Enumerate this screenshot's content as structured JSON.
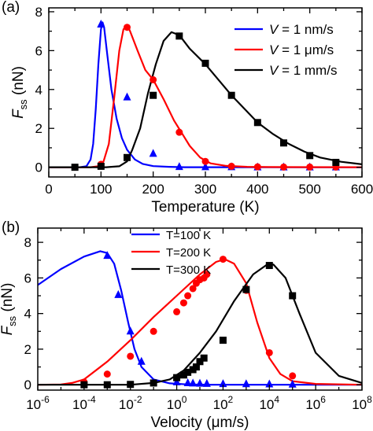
{
  "chart_data": [
    {
      "panel": "(a)",
      "type": "line",
      "xlabel": "Temperature (K)",
      "ylabel_main": "F",
      "ylabel_sub": "ss",
      "ylabel_unit": "(nN)",
      "xlim": [
        0,
        600
      ],
      "ylim": [
        -0.5,
        8.2
      ],
      "xticks": [
        0,
        100,
        200,
        300,
        400,
        500,
        600
      ],
      "xtick_labels": [
        "0",
        "100",
        "200",
        "300",
        "400",
        "500",
        "600"
      ],
      "yticks": [
        0,
        2,
        4,
        6,
        8
      ],
      "ytick_labels": [
        "0",
        "2",
        "4",
        "6",
        "8"
      ],
      "grid": false,
      "legend_position": "top-right",
      "series": [
        {
          "name_pre": "V",
          "name_post": " = 1 nm/s",
          "color": "#0000ff",
          "marker": "triangle",
          "curve": [
            [
              0,
              0
            ],
            [
              60,
              0
            ],
            [
              72,
              0.05
            ],
            [
              80,
              0.4
            ],
            [
              85,
              1.2
            ],
            [
              90,
              3.0
            ],
            [
              95,
              5.3
            ],
            [
              100,
              7.1
            ],
            [
              103,
              7.45
            ],
            [
              106,
              7.2
            ],
            [
              112,
              5.8
            ],
            [
              120,
              4.0
            ],
            [
              130,
              2.5
            ],
            [
              140,
              1.5
            ],
            [
              150,
              0.9
            ],
            [
              165,
              0.4
            ],
            [
              180,
              0.17
            ],
            [
              200,
              0.06
            ],
            [
              230,
              0.02
            ],
            [
              260,
              0
            ],
            [
              600,
              0
            ]
          ],
          "points": [
            [
              100,
              7.35
            ],
            [
              150,
              3.6
            ],
            [
              200,
              0.7
            ],
            [
              250,
              0.02
            ],
            [
              300,
              0.01
            ],
            [
              350,
              0.01
            ],
            [
              400,
              0
            ],
            [
              450,
              0
            ],
            [
              500,
              0
            ],
            [
              550,
              0
            ]
          ]
        },
        {
          "name_pre": "V",
          "name_post": " = 1 μm/s",
          "color": "#ff0000",
          "marker": "circle",
          "curve": [
            [
              0,
              0
            ],
            [
              80,
              0
            ],
            [
              95,
              0.05
            ],
            [
              105,
              0.3
            ],
            [
              115,
              1.2
            ],
            [
              125,
              3.5
            ],
            [
              135,
              6.0
            ],
            [
              143,
              7.1
            ],
            [
              148,
              7.25
            ],
            [
              155,
              7.05
            ],
            [
              170,
              6.0
            ],
            [
              185,
              5.0
            ],
            [
              200,
              4.5
            ],
            [
              220,
              3.5
            ],
            [
              240,
              2.4
            ],
            [
              255,
              1.75
            ],
            [
              270,
              1.1
            ],
            [
              290,
              0.5
            ],
            [
              310,
              0.2
            ],
            [
              340,
              0.07
            ],
            [
              380,
              0.02
            ],
            [
              420,
              0.01
            ],
            [
              600,
              0
            ]
          ],
          "points": [
            [
              100,
              0.15
            ],
            [
              150,
              7.2
            ],
            [
              200,
              4.5
            ],
            [
              250,
              1.8
            ],
            [
              300,
              0.3
            ],
            [
              350,
              0.05
            ],
            [
              400,
              0.02
            ],
            [
              450,
              0.01
            ],
            [
              500,
              0.01
            ],
            [
              550,
              0.01
            ]
          ]
        },
        {
          "name_pre": "V",
          "name_post": " = 1 mm/s",
          "color": "#000000",
          "marker": "square",
          "curve": [
            [
              0,
              0
            ],
            [
              110,
              0
            ],
            [
              135,
              0.05
            ],
            [
              150,
              0.3
            ],
            [
              160,
              0.9
            ],
            [
              175,
              2.0
            ],
            [
              190,
              3.8
            ],
            [
              205,
              5.3
            ],
            [
              220,
              6.5
            ],
            [
              235,
              6.95
            ],
            [
              250,
              6.8
            ],
            [
              270,
              6.1
            ],
            [
              300,
              5.3
            ],
            [
              325,
              4.5
            ],
            [
              350,
              3.7
            ],
            [
              375,
              3.0
            ],
            [
              400,
              2.3
            ],
            [
              430,
              1.7
            ],
            [
              460,
              1.2
            ],
            [
              490,
              0.8
            ],
            [
              520,
              0.5
            ],
            [
              560,
              0.28
            ],
            [
              600,
              0.15
            ]
          ],
          "points": [
            [
              50,
              0
            ],
            [
              100,
              0.05
            ],
            [
              150,
              0.5
            ],
            [
              200,
              3.7
            ],
            [
              250,
              6.75
            ],
            [
              300,
              5.35
            ],
            [
              350,
              3.7
            ],
            [
              400,
              2.3
            ],
            [
              450,
              1.25
            ],
            [
              500,
              0.6
            ],
            [
              550,
              0.25
            ]
          ]
        }
      ]
    },
    {
      "panel": "(b)",
      "type": "line",
      "xscale": "log",
      "xlabel": "Velocity (μm/s)",
      "ylabel_main": "F",
      "ylabel_sub": "ss",
      "ylabel_unit": "(nN)",
      "xlim": [
        1e-06,
        100000000.0
      ],
      "ylim": [
        -0.3,
        8.8
      ],
      "xtick_base": "10",
      "xtick_exponents": [
        "-6",
        "-4",
        "-2",
        "0",
        "2",
        "4",
        "6",
        "8"
      ],
      "yticks": [
        0,
        2,
        4,
        6,
        8
      ],
      "ytick_labels": [
        "0",
        "2",
        "4",
        "6",
        "8"
      ],
      "grid": false,
      "legend_position": "top-center",
      "series": [
        {
          "name": "T=100 K",
          "color": "#0000ff",
          "marker": "triangle",
          "curve": [
            [
              1e-06,
              5.6
            ],
            [
              1e-05,
              6.5
            ],
            [
              0.0001,
              7.2
            ],
            [
              0.0005,
              7.5
            ],
            [
              0.001,
              7.4
            ],
            [
              0.002,
              6.8
            ],
            [
              0.004,
              5.3
            ],
            [
              0.008,
              3.5
            ],
            [
              0.015,
              2.0
            ],
            [
              0.03,
              1.0
            ],
            [
              0.1,
              0.3
            ],
            [
              0.5,
              0.08
            ],
            [
              3,
              0.02
            ],
            [
              30,
              0
            ],
            [
              100000000.0,
              0
            ]
          ],
          "points": [
            [
              0.001,
              7.25
            ],
            [
              0.003,
              5.05
            ],
            [
              0.01,
              3.0
            ],
            [
              0.03,
              1.3
            ],
            [
              1,
              0.15
            ],
            [
              3,
              0.1
            ],
            [
              5,
              0.08
            ],
            [
              10,
              0.07
            ],
            [
              20,
              0.06
            ],
            [
              100,
              0.05
            ],
            [
              1000,
              0.04
            ],
            [
              10000,
              0.03
            ],
            [
              100000,
              0.02
            ]
          ]
        },
        {
          "name": "T=200 K",
          "color": "#ff0000",
          "marker": "circle",
          "curve": [
            [
              1e-06,
              0
            ],
            [
              1e-05,
              0.02
            ],
            [
              3e-05,
              0.1
            ],
            [
              0.0001,
              0.3
            ],
            [
              0.001,
              1.3
            ],
            [
              0.01,
              2.5
            ],
            [
              0.1,
              3.8
            ],
            [
              1,
              5.0
            ],
            [
              10,
              6.2
            ],
            [
              50,
              6.9
            ],
            [
              120,
              7.05
            ],
            [
              300,
              6.8
            ],
            [
              1000,
              5.7
            ],
            [
              3000,
              3.5
            ],
            [
              10000,
              1.5
            ],
            [
              30000,
              0.6
            ],
            [
              100000,
              0.2
            ],
            [
              1000000.0,
              0.05
            ],
            [
              100000000.0,
              0
            ]
          ],
          "points": [
            [
              0.0001,
              0.15
            ],
            [
              0.001,
              0.6
            ],
            [
              0.01,
              1.6
            ],
            [
              0.1,
              3.0
            ],
            [
              1,
              4.1
            ],
            [
              2,
              4.6
            ],
            [
              3,
              5.0
            ],
            [
              5,
              5.4
            ],
            [
              7,
              5.7
            ],
            [
              10,
              5.9
            ],
            [
              15,
              6.0
            ],
            [
              20,
              6.2
            ],
            [
              100,
              7.05
            ],
            [
              1000,
              5.3
            ],
            [
              10000,
              1.8
            ],
            [
              100000,
              0.5
            ]
          ]
        },
        {
          "name": "T=300 K",
          "color": "#000000",
          "marker": "square",
          "curve": [
            [
              1e-06,
              0
            ],
            [
              0.01,
              0
            ],
            [
              0.1,
              0.1
            ],
            [
              0.5,
              0.3
            ],
            [
              2,
              0.8
            ],
            [
              10,
              1.8
            ],
            [
              50,
              3.0
            ],
            [
              300,
              4.7
            ],
            [
              2000,
              6.2
            ],
            [
              8000,
              6.75
            ],
            [
              15000,
              6.75
            ],
            [
              50000,
              6.0
            ],
            [
              200000,
              4.0
            ],
            [
              1000000.0,
              1.8
            ],
            [
              10000000.0,
              0.5
            ],
            [
              100000000.0,
              0.1
            ]
          ],
          "points": [
            [
              0.0001,
              0
            ],
            [
              0.001,
              0
            ],
            [
              0.01,
              0.02
            ],
            [
              0.1,
              0.1
            ],
            [
              1,
              0.4
            ],
            [
              2,
              0.55
            ],
            [
              3,
              0.7
            ],
            [
              5,
              0.85
            ],
            [
              7,
              1.0
            ],
            [
              10,
              1.3
            ],
            [
              15,
              1.5
            ],
            [
              100,
              2.5
            ],
            [
              1000,
              5.35
            ],
            [
              10000,
              6.7
            ],
            [
              100000,
              5.0
            ]
          ]
        }
      ]
    }
  ]
}
